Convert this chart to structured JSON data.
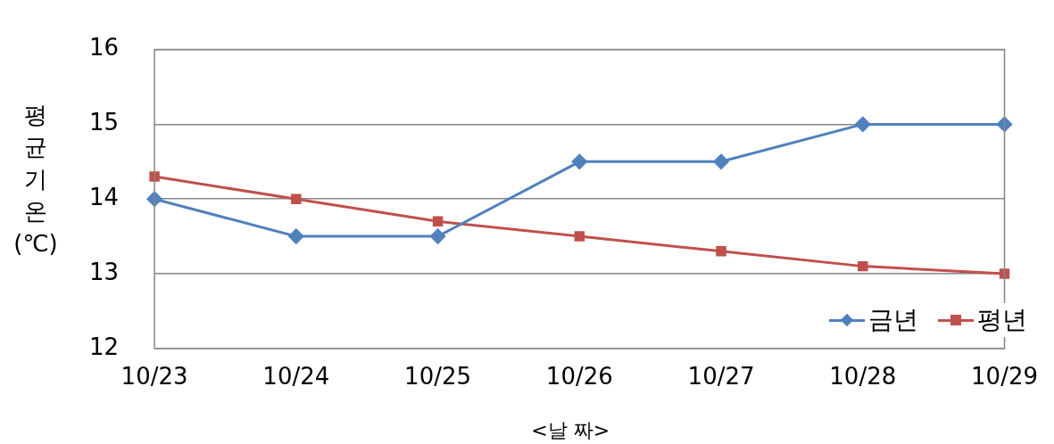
{
  "chart_data": {
    "type": "line",
    "ylabel": "평균기온(℃)",
    "xlabel": "<날 짜>",
    "categories": [
      "10/23",
      "10/24",
      "10/25",
      "10/26",
      "10/27",
      "10/28",
      "10/29"
    ],
    "series": [
      {
        "name": "금년",
        "color": "#4f81bd",
        "marker": "diamond",
        "values": [
          14,
          13.5,
          13.5,
          14.5,
          14.5,
          15,
          15
        ]
      },
      {
        "name": "평년",
        "color": "#c0504d",
        "marker": "square",
        "values": [
          14.3,
          14.0,
          13.7,
          13.5,
          13.3,
          13.1,
          13.0
        ]
      }
    ],
    "ylim": [
      12,
      16
    ],
    "yticks": [
      12,
      13,
      14,
      15,
      16
    ],
    "grid": "y",
    "legend": "bottom right",
    "line_style": "solid"
  }
}
